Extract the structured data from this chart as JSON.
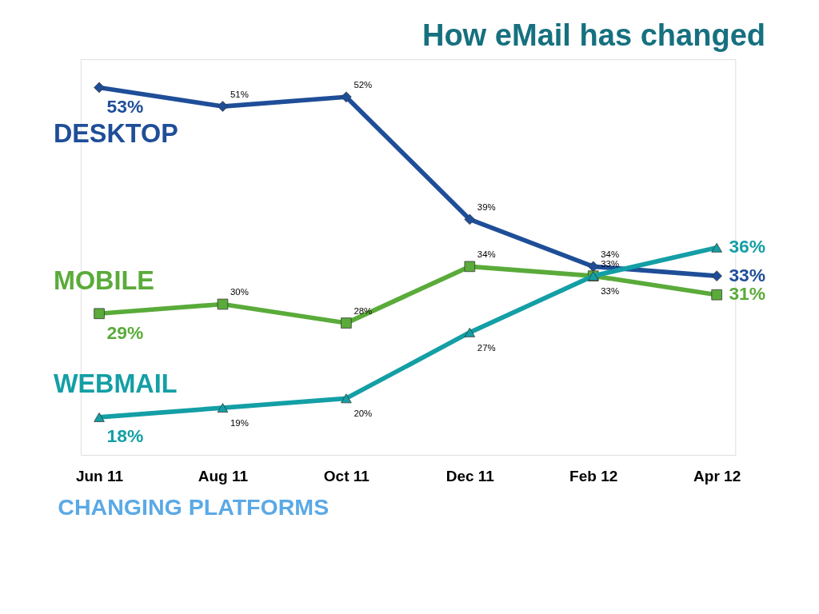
{
  "chart_data": {
    "type": "line",
    "title": "How eMail has changed",
    "categories": [
      "Jun 11",
      "Aug 11",
      "Oct 11",
      "Dec 11",
      "Feb 12",
      "Apr 12"
    ],
    "series": [
      {
        "name": "DESKTOP",
        "color": "#1f4e98",
        "marker": "diamond",
        "values": [
          53,
          51,
          52,
          39,
          34,
          33
        ],
        "value_labels": [
          "53%",
          "51%",
          "52%",
          "39%",
          "34%",
          "33%"
        ]
      },
      {
        "name": "MOBILE",
        "color": "#5aab3a",
        "marker": "square",
        "values": [
          29,
          30,
          28,
          34,
          33,
          31
        ],
        "value_labels": [
          "29%",
          "30%",
          "28%",
          "34%",
          "33%",
          "31%"
        ]
      },
      {
        "name": "WEBMAIL",
        "color": "#139fa5",
        "marker": "triangle",
        "values": [
          18,
          19,
          20,
          27,
          33,
          36
        ],
        "value_labels": [
          "18%",
          "19%",
          "20%",
          "27%",
          "33%",
          "36%"
        ]
      }
    ],
    "ylim": [
      14,
      56
    ],
    "tick_labels": "x",
    "grid": false,
    "line_style": "solid",
    "annotations": [
      "CHANGING PLATFORMS"
    ]
  }
}
